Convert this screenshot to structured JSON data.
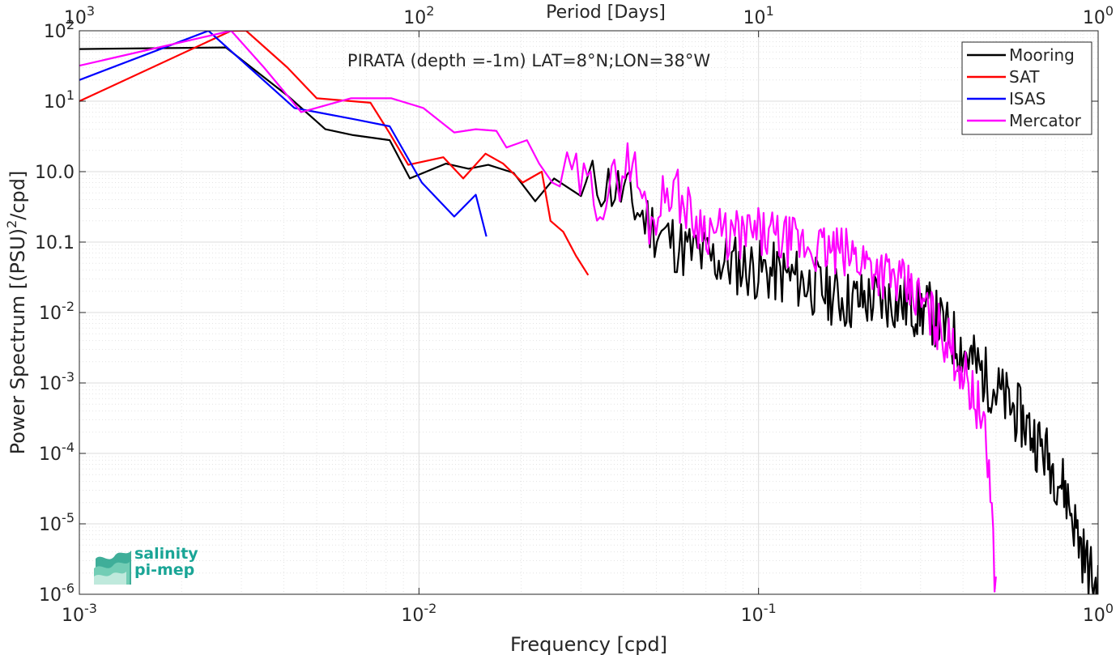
{
  "chart_data": {
    "type": "line",
    "title": "PIRATA (depth =-1m) LAT=8°N;LON=38°W",
    "xlabel": "Frequency [cpd]",
    "ylabel": "Power Spectrum [(PSU)",
    "ylabel_sup": "2",
    "ylabel_tail": "/cpd]",
    "top_xlabel": "Period [Days]",
    "xscale": "log",
    "yscale": "log",
    "xlim": [
      0.001,
      1
    ],
    "ylim": [
      1e-06,
      100
    ],
    "grid": true,
    "legend_position": "top-right",
    "x_ticks": [
      {
        "value": 0.001,
        "base": "10",
        "exp": "-3"
      },
      {
        "value": 0.01,
        "base": "10",
        "exp": "-2"
      },
      {
        "value": 0.1,
        "base": "10",
        "exp": "-1"
      },
      {
        "value": 1,
        "base": "10",
        "exp": "0"
      }
    ],
    "top_ticks": [
      {
        "value": 0.001,
        "base": "10",
        "exp": "3"
      },
      {
        "value": 0.01,
        "base": "10",
        "exp": "2"
      },
      {
        "value": 0.1,
        "base": "10",
        "exp": "1"
      },
      {
        "value": 1,
        "base": "10",
        "exp": "0"
      }
    ],
    "y_ticks": [
      {
        "value": 100,
        "base": "10",
        "exp": "2"
      },
      {
        "value": 10,
        "base": "10",
        "exp": "1"
      },
      {
        "value": 1,
        "base": "10",
        "exp": null,
        "label": "10.0"
      },
      {
        "value": 0.1,
        "base": "10",
        "exp": null,
        "label": "10.1"
      },
      {
        "value": 0.01,
        "base": "10",
        "exp": "-2"
      },
      {
        "value": 0.001,
        "base": "10",
        "exp": "-3"
      },
      {
        "value": 0.0001,
        "base": "10",
        "exp": "-4"
      },
      {
        "value": 1e-05,
        "base": "10",
        "exp": "-5"
      },
      {
        "value": 1e-06,
        "base": "10",
        "exp": "-6"
      }
    ],
    "series": [
      {
        "name": "Mooring",
        "color": "#000000",
        "type": "noisy",
        "anchors": [
          [
            0.001,
            55
          ],
          [
            0.0027,
            58
          ],
          [
            0.0041,
            12
          ],
          [
            0.0053,
            4
          ],
          [
            0.0064,
            3.3
          ],
          [
            0.0082,
            2.8
          ],
          [
            0.0094,
            0.8
          ],
          [
            0.012,
            1.3
          ],
          [
            0.014,
            1.1
          ],
          [
            0.016,
            1.25
          ],
          [
            0.019,
            0.96
          ],
          [
            0.022,
            0.38
          ],
          [
            0.025,
            0.8
          ],
          [
            0.03,
            0.45
          ],
          [
            0.034,
            0.75
          ],
          [
            0.04,
            0.5
          ],
          [
            0.045,
            0.25
          ],
          [
            0.05,
            0.15
          ],
          [
            0.06,
            0.08
          ],
          [
            0.07,
            0.06
          ],
          [
            0.1,
            0.04
          ],
          [
            0.13,
            0.03
          ],
          [
            0.18,
            0.015
          ],
          [
            0.25,
            0.015
          ],
          [
            0.32,
            0.01
          ],
          [
            0.4,
            0.003
          ],
          [
            0.5,
            0.0008
          ],
          [
            0.6,
            0.0003
          ],
          [
            0.7,
            0.0001
          ],
          [
            0.8,
            3e-05
          ],
          [
            0.9,
            4e-06
          ],
          [
            1,
            1e-06
          ]
        ],
        "noise": 0.45,
        "npts": 320,
        "noise_start": 0.031,
        "seed": 11
      },
      {
        "name": "SAT",
        "color": "#ff0000",
        "type": "line",
        "x": [
          0.001,
          0.0028,
          0.0031,
          0.0041,
          0.005,
          0.0072,
          0.0082,
          0.0093,
          0.0118,
          0.0135,
          0.0157,
          0.0177,
          0.0202,
          0.023,
          0.0244,
          0.0266,
          0.029,
          0.0315
        ],
        "y": [
          10,
          100,
          100,
          30,
          11,
          9.5,
          3.5,
          1.25,
          1.6,
          0.8,
          1.8,
          1.3,
          0.7,
          1.0,
          0.2,
          0.14,
          0.064,
          0.034
        ]
      },
      {
        "name": "ISAS",
        "color": "#0000ff",
        "type": "line",
        "x": [
          0.001,
          0.0024,
          0.0043,
          0.005,
          0.0065,
          0.0082,
          0.0102,
          0.0127,
          0.0147,
          0.0158
        ],
        "y": [
          20,
          100,
          8,
          7,
          5.5,
          4.4,
          0.7,
          0.23,
          0.47,
          0.12
        ]
      },
      {
        "name": "Mercator",
        "color": "#ff00ff",
        "type": "noisy",
        "anchors": [
          [
            0.001,
            32
          ],
          [
            0.0028,
            100
          ],
          [
            0.0035,
            30
          ],
          [
            0.0045,
            7
          ],
          [
            0.0063,
            11
          ],
          [
            0.0083,
            11
          ],
          [
            0.0103,
            8
          ],
          [
            0.0127,
            3.6
          ],
          [
            0.0147,
            4
          ],
          [
            0.0169,
            3.8
          ],
          [
            0.0181,
            2.2
          ],
          [
            0.0208,
            2.8
          ],
          [
            0.0226,
            1.3
          ],
          [
            0.0247,
            0.7
          ],
          [
            0.028,
            0.9
          ],
          [
            0.035,
            0.4
          ],
          [
            0.042,
            1.6
          ],
          [
            0.048,
            0.18
          ],
          [
            0.055,
            0.7
          ],
          [
            0.065,
            0.2
          ],
          [
            0.08,
            0.12
          ],
          [
            0.1,
            0.13
          ],
          [
            0.15,
            0.08
          ],
          [
            0.2,
            0.06
          ],
          [
            0.25,
            0.03
          ],
          [
            0.3,
            0.015
          ],
          [
            0.35,
            0.005
          ],
          [
            0.4,
            0.0015
          ],
          [
            0.45,
            0.0004
          ],
          [
            0.48,
            5e-05
          ],
          [
            0.5,
            1e-06
          ]
        ],
        "noise": 0.38,
        "npts": 240,
        "noise_start": 0.026,
        "seed": 29
      }
    ]
  },
  "logo": {
    "line1": "salinity",
    "line2": "pi-mep"
  }
}
